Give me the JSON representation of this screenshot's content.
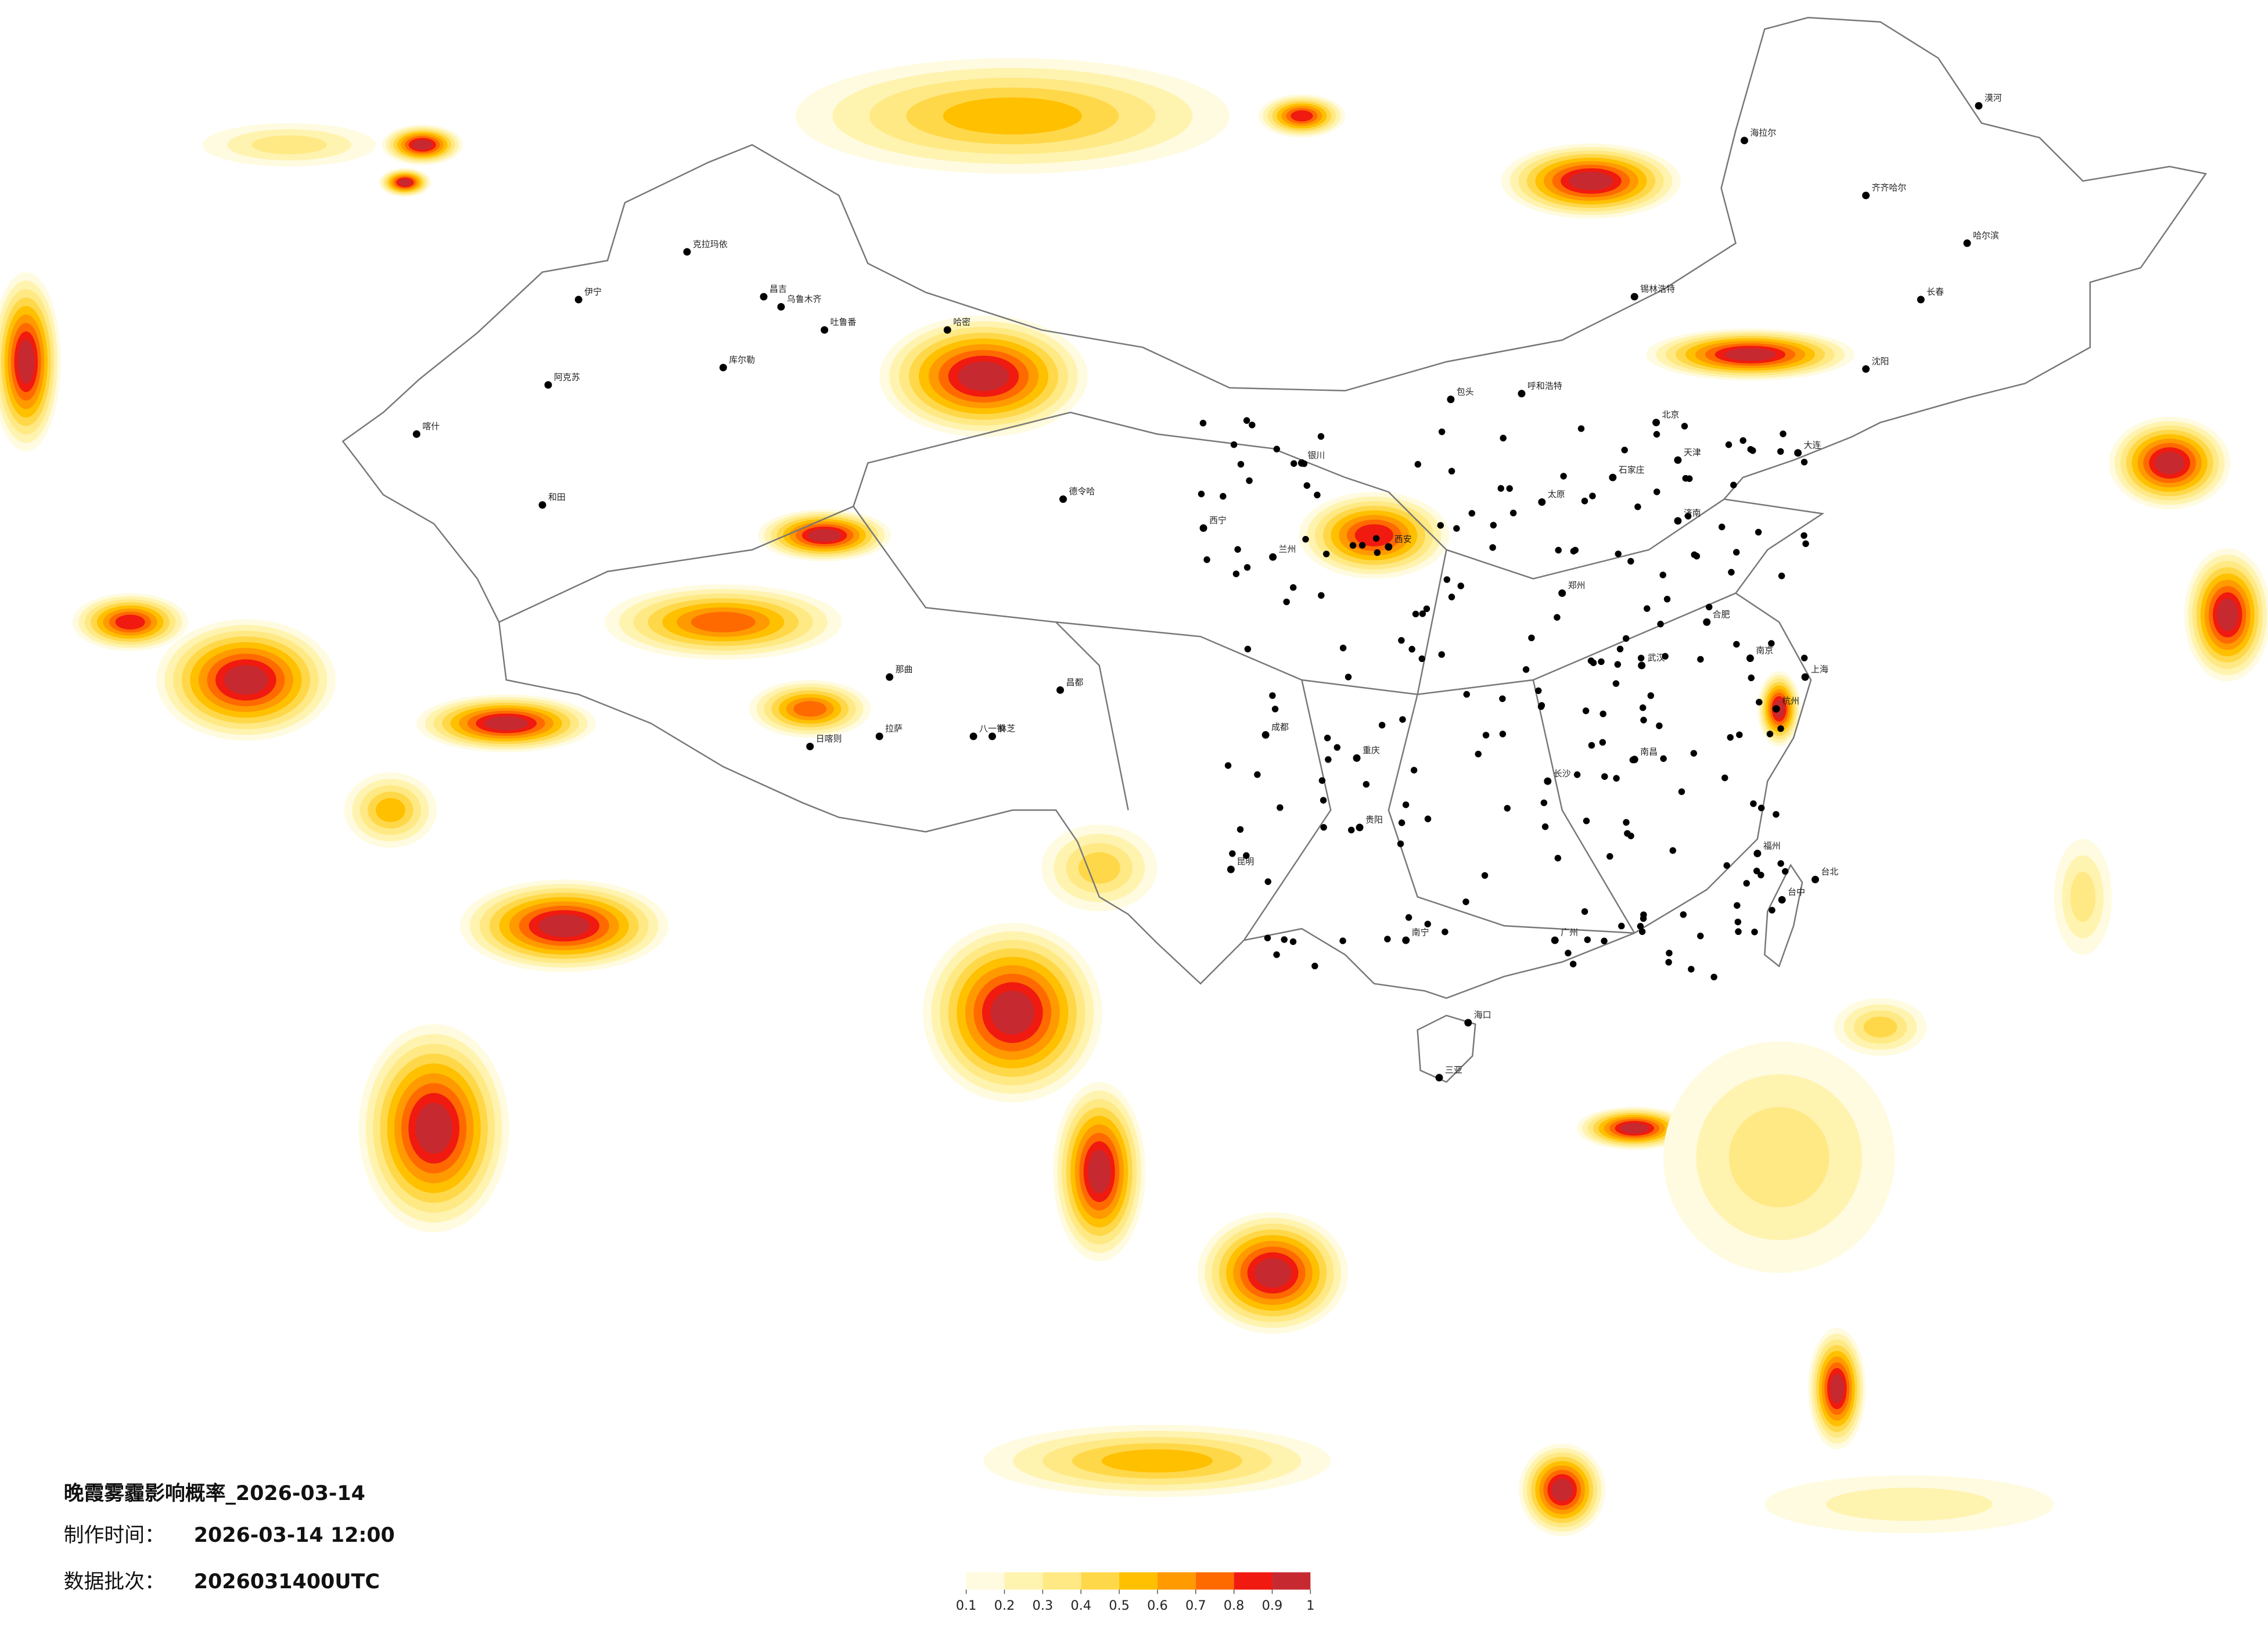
{
  "header": {
    "title": "晚霞雾霾影响概率_2026-03-14",
    "made_label": "制作时间：",
    "made_value": "2026-03-14 12:00",
    "batch_label": "数据批次：",
    "batch_value": "2026031400UTC"
  },
  "legend": {
    "ticks": [
      0.1,
      0.2,
      0.3,
      0.4,
      0.5,
      0.6,
      0.7,
      0.8,
      0.9,
      1
    ],
    "colors": [
      "#fffbe0",
      "#fff3b0",
      "#ffe985",
      "#ffd84a",
      "#ffc000",
      "#ff9a00",
      "#ff6a00",
      "#f01a10",
      "#c62a30"
    ]
  },
  "cities": [
    "克拉玛依",
    "伊宁",
    "阿克苏",
    "和田",
    "喀什",
    "昌吉",
    "乌鲁木齐",
    "吐鲁番",
    "库尔勒",
    "哈密",
    "德令哈",
    "拉萨",
    "日喀则",
    "八一镇",
    "林芝",
    "那曲",
    "昌都",
    "西宁",
    "兰州",
    "银川",
    "呼和浩特",
    "包头",
    "北京",
    "天津",
    "石家庄",
    "太原",
    "济南",
    "郑州",
    "西安",
    "成都",
    "重庆",
    "武汉",
    "长沙",
    "南昌",
    "合肥",
    "南京",
    "上海",
    "杭州",
    "福州",
    "广州",
    "南宁",
    "海口",
    "三亚",
    "昆明",
    "贵阳",
    "哈尔滨",
    "长春",
    "沈阳",
    "海拉尔",
    "齐齐哈尔",
    "台北",
    "台中",
    "大连",
    "锡林浩特",
    "漠河"
  ]
}
